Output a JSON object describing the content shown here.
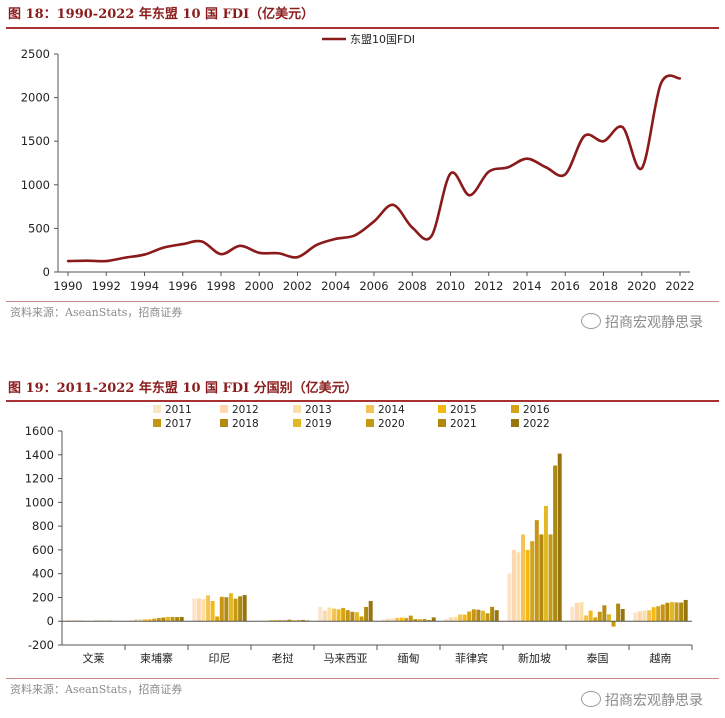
{
  "figures": [
    {
      "title": "图 18：1990-2022 年东盟 10 国 FDI（亿美元）",
      "source": "资料来源：AseanStats，招商证券",
      "watermark": "招商宏观静思录"
    },
    {
      "title": "图 19：2011-2022 年东盟 10 国 FDI 分国别（亿美元）",
      "source": "资料来源：AseanStats，招商证券",
      "watermark": "招商宏观静思录"
    }
  ],
  "chart_data": [
    {
      "type": "line",
      "title": "",
      "xlabel": "",
      "ylabel": "",
      "legend_position": "top-center",
      "grid": false,
      "xlim": [
        1990,
        2022
      ],
      "ylim": [
        0,
        2500
      ],
      "x_ticks": [
        "1990",
        "1992",
        "1994",
        "1996",
        "1998",
        "2000",
        "2002",
        "2004",
        "2006",
        "2008",
        "2010",
        "2012",
        "2014",
        "2016",
        "2018",
        "2020",
        "2022"
      ],
      "y_ticks": [
        "0",
        "500",
        "1000",
        "1500",
        "2000",
        "2500"
      ],
      "series": [
        {
          "name": "东盟10国FDI",
          "color": "#8b1a1a",
          "x": [
            1990,
            1991,
            1992,
            1993,
            1994,
            1995,
            1996,
            1997,
            1998,
            1999,
            2000,
            2001,
            2002,
            2003,
            2004,
            2005,
            2006,
            2007,
            2008,
            2009,
            2010,
            2011,
            2012,
            2013,
            2014,
            2015,
            2016,
            2017,
            2018,
            2019,
            2020,
            2021,
            2022
          ],
          "values": [
            125,
            130,
            125,
            165,
            200,
            280,
            320,
            350,
            205,
            300,
            220,
            215,
            170,
            310,
            380,
            420,
            580,
            770,
            510,
            410,
            1130,
            880,
            1150,
            1200,
            1300,
            1200,
            1120,
            1560,
            1500,
            1660,
            1190,
            2160,
            2220
          ]
        }
      ]
    },
    {
      "type": "bar",
      "title": "",
      "xlabel": "",
      "ylabel": "",
      "legend_position": "top",
      "grid": false,
      "ylim": [
        -200,
        1600
      ],
      "y_ticks": [
        "-200",
        "0",
        "200",
        "400",
        "600",
        "800",
        "1000",
        "1200",
        "1400",
        "1600"
      ],
      "categories": [
        "文莱",
        "柬埔寨",
        "印尼",
        "老挝",
        "马来西亚",
        "缅甸",
        "菲律宾",
        "新加坡",
        "泰国",
        "越南"
      ],
      "series": [
        {
          "name": "2011",
          "color": "#fde3c8",
          "values": [
            12,
            9,
            192,
            3,
            120,
            12,
            20,
            400,
            120,
            74
          ]
        },
        {
          "name": "2012",
          "color": "#fcd7b2",
          "values": [
            8,
            16,
            192,
            3,
            90,
            20,
            33,
            600,
            155,
            84
          ]
        },
        {
          "name": "2013",
          "color": "#fbe0a6",
          "values": [
            9,
            18,
            185,
            4,
            115,
            22,
            37,
            580,
            160,
            89
          ]
        },
        {
          "name": "2014",
          "color": "#f6c255",
          "values": [
            6,
            17,
            218,
            9,
            106,
            28,
            57,
            730,
            49,
            92
          ]
        },
        {
          "name": "2015",
          "color": "#f4ba12",
          "values": [
            2,
            17,
            170,
            10,
            100,
            30,
            56,
            600,
            89,
            118
          ]
        },
        {
          "name": "2016",
          "color": "#d3a319",
          "values": [
            1,
            22,
            40,
            9,
            112,
            28,
            82,
            673,
            32,
            126
          ]
        },
        {
          "name": "2017",
          "color": "#c79513",
          "values": [
            5,
            27,
            205,
            8,
            93,
            47,
            100,
            850,
            80,
            141
          ]
        },
        {
          "name": "2018",
          "color": "#b58a10",
          "values": [
            5,
            31,
            202,
            13,
            80,
            17,
            97,
            730,
            134,
            155
          ]
        },
        {
          "name": "2019",
          "color": "#e2b824",
          "values": [
            4,
            36,
            235,
            8,
            76,
            18,
            88,
            970,
            58,
            161
          ]
        },
        {
          "name": "2020",
          "color": "#c49a12",
          "values": [
            6,
            36,
            190,
            9,
            40,
            19,
            67,
            730,
            -45,
            158
          ]
        },
        {
          "name": "2021",
          "color": "#ad8a0e",
          "values": [
            2,
            35,
            210,
            11,
            120,
            10,
            121,
            1310,
            148,
            157
          ]
        },
        {
          "name": "2022",
          "color": "#967510",
          "values": [
            2,
            36,
            220,
            6,
            170,
            32,
            93,
            1410,
            103,
            179
          ]
        }
      ]
    }
  ]
}
